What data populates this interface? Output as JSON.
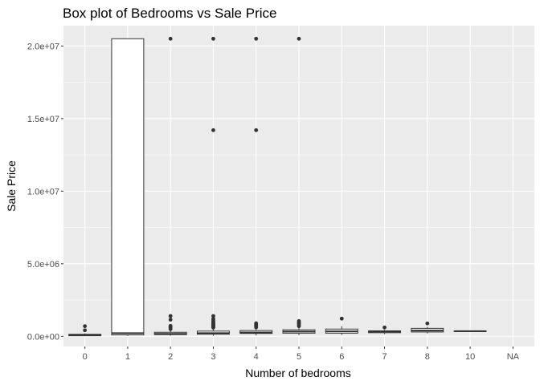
{
  "chart_data": {
    "type": "boxplot",
    "title": "Box plot of Bedrooms vs Sale Price",
    "xlabel": "Number of bedrooms",
    "ylabel": "Sale Price",
    "ylim": [
      -700000,
      21400000
    ],
    "y_ticks": [
      0,
      5000000,
      10000000,
      15000000,
      20000000
    ],
    "y_tick_labels": [
      "0.0e+00",
      "5.0e+06",
      "1.0e+07",
      "1.5e+07",
      "2.0e+07"
    ],
    "categories": [
      "0",
      "1",
      "2",
      "3",
      "4",
      "5",
      "6",
      "7",
      "8",
      "10",
      "NA"
    ],
    "grid": true,
    "colors": {
      "panel": "#ebebeb",
      "grid": "#ffffff",
      "box_fill": "#ffffff",
      "box_stroke": "#333333",
      "outlier": "#333333"
    },
    "boxes": [
      {
        "category": "0",
        "lower": 20000,
        "q1": 40000,
        "median": 80000,
        "q3": 140000,
        "upper": 200000,
        "outliers": [
          420000,
          700000
        ]
      },
      {
        "category": "1",
        "lower": 30000,
        "q1": 100000,
        "median": 220000,
        "q3": 20500000,
        "upper": 20500000,
        "outliers": []
      },
      {
        "category": "2",
        "lower": 40000,
        "q1": 120000,
        "median": 170000,
        "q3": 280000,
        "upper": 450000,
        "outliers": [
          500000,
          580000,
          650000,
          720000,
          1150000,
          1400000,
          20500000
        ]
      },
      {
        "category": "3",
        "lower": 40000,
        "q1": 150000,
        "median": 220000,
        "q3": 360000,
        "upper": 550000,
        "outliers": [
          600000,
          650000,
          700000,
          750000,
          800000,
          850000,
          900000,
          950000,
          1000000,
          1100000,
          1200000,
          1400000,
          14200000,
          20500000
        ]
      },
      {
        "category": "4",
        "lower": 60000,
        "q1": 200000,
        "median": 270000,
        "q3": 400000,
        "upper": 600000,
        "outliers": [
          620000,
          680000,
          720000,
          780000,
          850000,
          900000,
          14200000,
          20500000
        ]
      },
      {
        "category": "5",
        "lower": 80000,
        "q1": 220000,
        "median": 330000,
        "q3": 450000,
        "upper": 650000,
        "outliers": [
          700000,
          800000,
          880000,
          950000,
          1050000,
          20500000
        ]
      },
      {
        "category": "6",
        "lower": 100000,
        "q1": 220000,
        "median": 340000,
        "q3": 500000,
        "upper": 700000,
        "outliers": [
          1220000
        ]
      },
      {
        "category": "7",
        "lower": 150000,
        "q1": 250000,
        "median": 330000,
        "q3": 380000,
        "upper": 450000,
        "outliers": [
          610000
        ]
      },
      {
        "category": "8",
        "lower": 200000,
        "q1": 300000,
        "median": 400000,
        "q3": 550000,
        "upper": 650000,
        "outliers": [
          890000
        ]
      },
      {
        "category": "10",
        "lower": 360000,
        "q1": 360000,
        "median": 360000,
        "q3": 360000,
        "upper": 360000,
        "outliers": []
      },
      {
        "category": "NA",
        "lower": null,
        "q1": null,
        "median": null,
        "q3": null,
        "upper": null,
        "outliers": []
      }
    ]
  }
}
